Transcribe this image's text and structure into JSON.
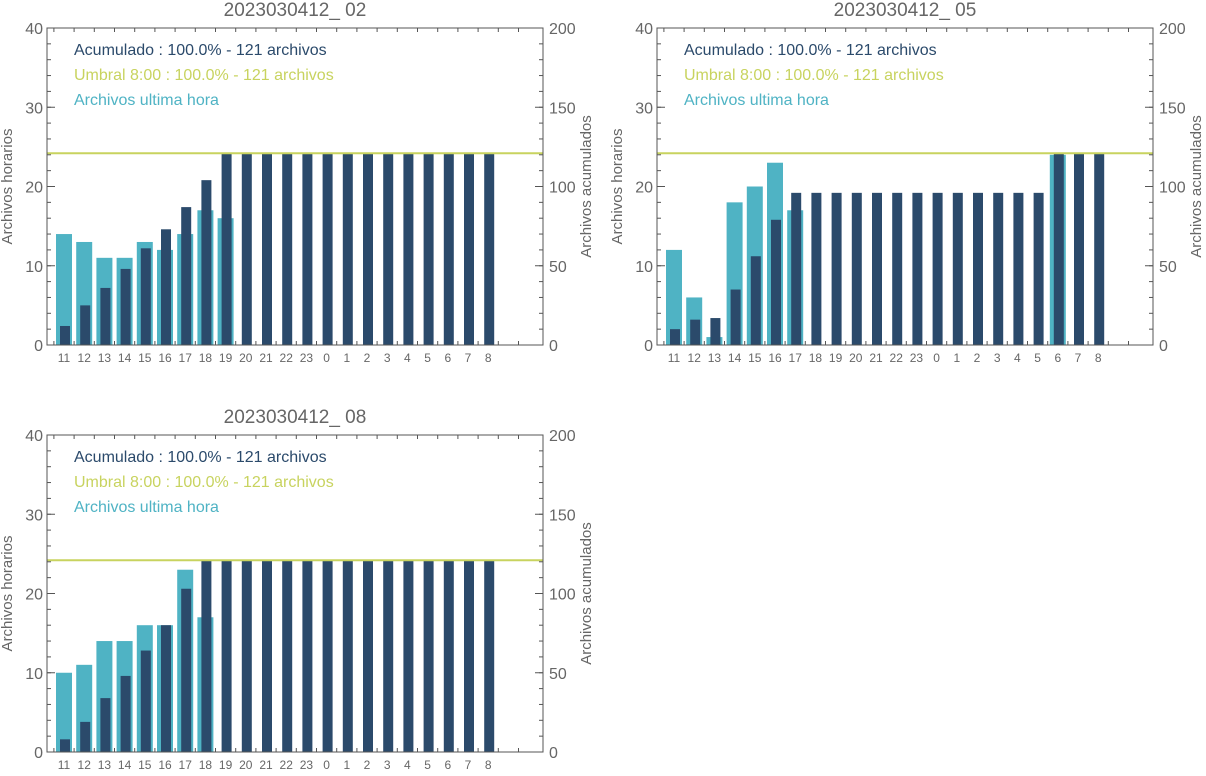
{
  "colors": {
    "hourly": "#4fb3c4",
    "cumulative": "#2b4a6b",
    "threshold": "#c8d35f",
    "axis": "#555555",
    "text": "#666666"
  },
  "chart_data": [
    {
      "type": "bar",
      "title": "2023030412_ 02",
      "ylabel": "Archivos horarios",
      "ylabel_right": "Archivos acumulados",
      "ylim": [
        0,
        40
      ],
      "ylim_right": [
        0,
        200
      ],
      "yticks": [
        "0",
        "10",
        "20",
        "30",
        "40"
      ],
      "yticks_right": [
        "0",
        "50",
        "100",
        "150",
        "200"
      ],
      "categories": [
        "11",
        "12",
        "13",
        "14",
        "15",
        "16",
        "17",
        "18",
        "19",
        "20",
        "21",
        "22",
        "23",
        "0",
        "1",
        "2",
        "3",
        "4",
        "5",
        "6",
        "7",
        "8"
      ],
      "legend": [
        "Acumulado : 100.0% - 121 archivos",
        "Umbral 8:00 : 100.0% - 121 archivos",
        "Archivos ultima hora"
      ],
      "threshold": 121,
      "series": [
        {
          "name": "Archivos ultima hora",
          "axis": "left",
          "values": [
            14,
            13,
            11,
            11,
            13,
            12,
            14,
            17,
            16,
            0,
            0,
            0,
            0,
            0,
            0,
            0,
            0,
            0,
            0,
            0,
            0,
            0
          ]
        },
        {
          "name": "Acumulado",
          "axis": "right",
          "values": [
            12,
            25,
            36,
            48,
            61,
            73,
            87,
            104,
            121,
            121,
            121,
            121,
            121,
            121,
            121,
            121,
            121,
            121,
            121,
            121,
            121,
            121
          ]
        }
      ]
    },
    {
      "type": "bar",
      "title": "2023030412_ 05",
      "ylabel": "Archivos horarios",
      "ylabel_right": "Archivos acumulados",
      "ylim": [
        0,
        40
      ],
      "ylim_right": [
        0,
        200
      ],
      "yticks": [
        "0",
        "10",
        "20",
        "30",
        "40"
      ],
      "yticks_right": [
        "0",
        "50",
        "100",
        "150",
        "200"
      ],
      "categories": [
        "11",
        "12",
        "13",
        "14",
        "15",
        "16",
        "17",
        "18",
        "19",
        "20",
        "21",
        "22",
        "23",
        "0",
        "1",
        "2",
        "3",
        "4",
        "5",
        "6",
        "7",
        "8"
      ],
      "legend": [
        "Acumulado : 100.0% - 121 archivos",
        "Umbral 8:00 : 100.0% - 121 archivos",
        "Archivos ultima hora"
      ],
      "threshold": 121,
      "series": [
        {
          "name": "Archivos ultima hora",
          "axis": "left",
          "values": [
            12,
            6,
            1,
            18,
            20,
            23,
            17,
            0,
            0,
            0,
            0,
            0,
            0,
            0,
            0,
            0,
            0,
            0,
            0,
            24,
            0,
            0
          ]
        },
        {
          "name": "Acumulado",
          "axis": "right",
          "values": [
            10,
            16,
            17,
            35,
            56,
            79,
            96,
            96,
            96,
            96,
            96,
            96,
            96,
            96,
            96,
            96,
            96,
            96,
            96,
            121,
            121,
            121
          ]
        }
      ]
    },
    {
      "type": "bar",
      "title": "2023030412_ 08",
      "ylabel": "Archivos horarios",
      "ylabel_right": "Archivos acumulados",
      "ylim": [
        0,
        40
      ],
      "ylim_right": [
        0,
        200
      ],
      "yticks": [
        "0",
        "10",
        "20",
        "30",
        "40"
      ],
      "yticks_right": [
        "0",
        "50",
        "100",
        "150",
        "200"
      ],
      "categories": [
        "11",
        "12",
        "13",
        "14",
        "15",
        "16",
        "17",
        "18",
        "19",
        "20",
        "21",
        "22",
        "23",
        "0",
        "1",
        "2",
        "3",
        "4",
        "5",
        "6",
        "7",
        "8"
      ],
      "legend": [
        "Acumulado : 100.0% - 121 archivos",
        "Umbral 8:00 : 100.0% - 121 archivos",
        "Archivos ultima hora"
      ],
      "threshold": 121,
      "series": [
        {
          "name": "Archivos ultima hora",
          "axis": "left",
          "values": [
            10,
            11,
            14,
            14,
            16,
            16,
            23,
            17,
            0,
            0,
            0,
            0,
            0,
            0,
            0,
            0,
            0,
            0,
            0,
            0,
            0,
            0
          ]
        },
        {
          "name": "Acumulado",
          "axis": "right",
          "values": [
            8,
            19,
            34,
            48,
            64,
            80,
            103,
            121,
            121,
            121,
            121,
            121,
            121,
            121,
            121,
            121,
            121,
            121,
            121,
            121,
            121,
            121
          ]
        }
      ]
    }
  ]
}
